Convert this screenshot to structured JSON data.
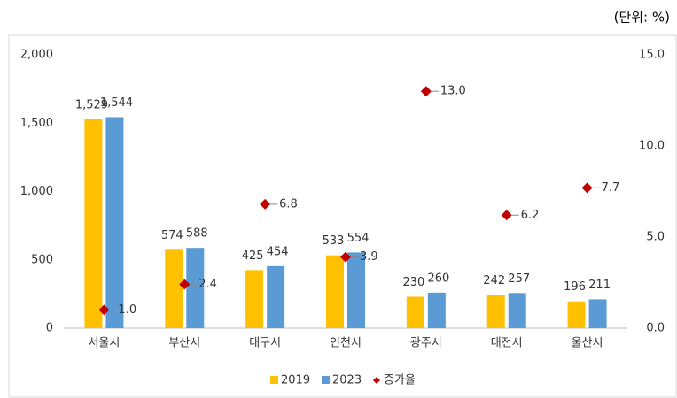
{
  "chart_data": {
    "type": "bar_line",
    "unit_label": "(단위:  %)",
    "categories": [
      "서울시",
      "부산시",
      "대구시",
      "인천시",
      "광주시",
      "대전시",
      "울산시"
    ],
    "series": [
      {
        "name": "2019",
        "color": "#ffc000",
        "values": [
          1529,
          574,
          425,
          533,
          230,
          242,
          196
        ],
        "value_labels": [
          "1,529",
          "574",
          "425",
          "533",
          "230",
          "242",
          "196"
        ]
      },
      {
        "name": "2023",
        "color": "#5b9bd5",
        "values": [
          1544,
          588,
          454,
          554,
          260,
          257,
          211
        ],
        "value_labels": [
          "1,544",
          "588",
          "454",
          "554",
          "260",
          "257",
          "211"
        ]
      },
      {
        "name": "증가율",
        "color": "#c00000",
        "axis": "y2",
        "values": [
          1.0,
          2.4,
          6.8,
          3.9,
          13.0,
          6.2,
          7.7
        ],
        "value_labels": [
          "1.0",
          "2.4",
          "6.8",
          "3.9",
          "13.0",
          "6.2",
          "7.7"
        ]
      }
    ],
    "ylim": [
      0,
      2000
    ],
    "yticks": [
      0,
      500,
      {
        "value": 1000,
        "label": "1,000"
      },
      {
        "value": 1500,
        "label": "1,500"
      },
      {
        "value": 2000,
        "label": "2,000"
      }
    ],
    "y2lim": [
      0,
      15
    ],
    "y2ticks": [
      {
        "value": 0,
        "label": "0.0"
      },
      {
        "value": 5,
        "label": "5.0"
      },
      {
        "value": 10,
        "label": "10.0"
      },
      {
        "value": 15,
        "label": "15.0"
      }
    ],
    "grid": false
  }
}
